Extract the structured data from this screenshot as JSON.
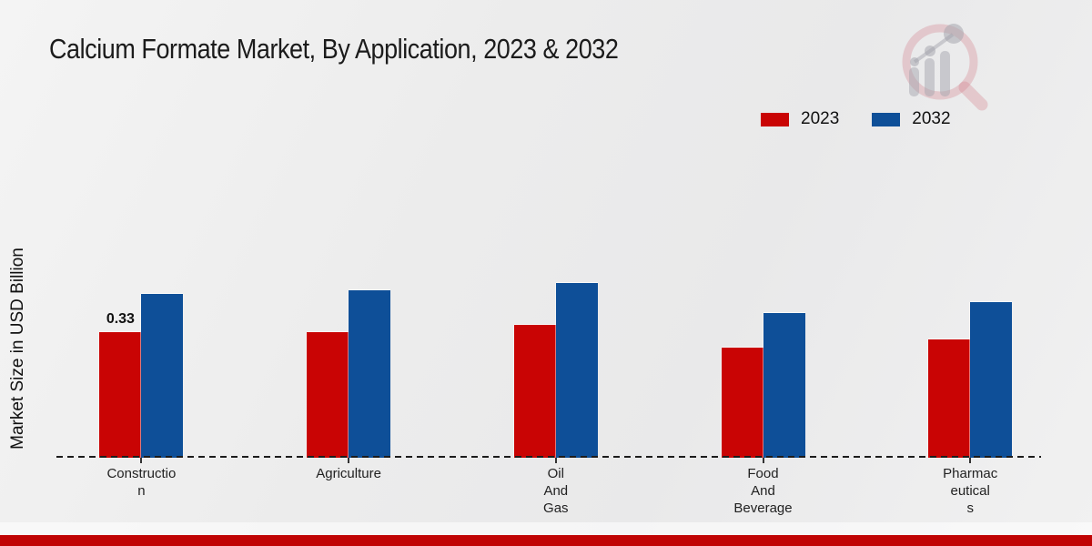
{
  "chart_data": {
    "type": "bar",
    "title": "Calcium Formate Market, By Application, 2023 & 2032",
    "ylabel": "Market Size in USD Billion",
    "xlabel": "",
    "categories": [
      "Construction",
      "Agriculture",
      "Oil And Gas",
      "Food And Beverage",
      "Pharmaceuticals"
    ],
    "category_label_lines": [
      [
        "Constructio",
        "n"
      ],
      [
        "Agriculture"
      ],
      [
        "Oil",
        "And",
        "Gas"
      ],
      [
        "Food",
        "And",
        "Beverage"
      ],
      [
        "Pharmac",
        "eutical",
        "s"
      ]
    ],
    "series": [
      {
        "name": "2023",
        "color": "#c90404",
        "values": [
          0.33,
          0.33,
          0.35,
          0.29,
          0.31
        ]
      },
      {
        "name": "2032",
        "color": "#0e4f98",
        "values": [
          0.43,
          0.44,
          0.46,
          0.38,
          0.41
        ]
      }
    ],
    "ylim": [
      0,
      0.5
    ],
    "grid": false,
    "legend_position": "top-right",
    "baseline_style": "dashed",
    "annotations": [
      {
        "series": "2023",
        "category": "Construction",
        "text": "0.33"
      }
    ]
  },
  "page": {
    "footer_bar_color": "#c00404",
    "background_color": "#ececec",
    "watermark_icon": "magnifier-bar-chart-logo"
  }
}
